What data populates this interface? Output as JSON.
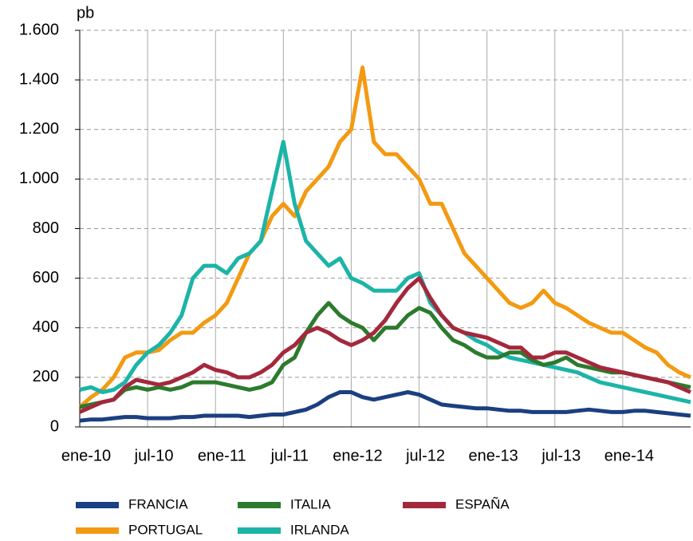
{
  "chart_data": {
    "type": "line",
    "y_label": "pb",
    "categories": [
      "ene-10",
      null,
      null,
      null,
      null,
      null,
      "jul-10",
      null,
      null,
      null,
      null,
      null,
      "ene-11",
      null,
      null,
      null,
      null,
      null,
      "jul-11",
      null,
      null,
      null,
      null,
      null,
      "ene-12",
      null,
      null,
      null,
      null,
      null,
      "jul-12",
      null,
      null,
      null,
      null,
      null,
      "ene-13",
      null,
      null,
      null,
      null,
      null,
      "jul-13",
      null,
      null,
      null,
      null,
      null,
      "ene-14",
      null,
      null,
      null,
      null,
      null,
      null
    ],
    "series": [
      {
        "name": "PORTUGAL",
        "color": "#f39a12",
        "values": [
          80,
          120,
          150,
          200,
          280,
          300,
          300,
          310,
          350,
          380,
          380,
          420,
          450,
          500,
          600,
          700,
          750,
          850,
          900,
          850,
          950,
          1000,
          1050,
          1150,
          1200,
          1450,
          1150,
          1100,
          1100,
          1050,
          1000,
          900,
          900,
          800,
          700,
          650,
          600,
          550,
          500,
          480,
          500,
          550,
          500,
          480,
          450,
          420,
          400,
          380,
          380,
          350,
          320,
          300,
          250,
          220,
          200
        ]
      },
      {
        "name": "IRLANDA",
        "color": "#1db4a8",
        "values": [
          150,
          160,
          140,
          150,
          180,
          250,
          300,
          330,
          380,
          450,
          600,
          650,
          650,
          620,
          680,
          700,
          750,
          950,
          1150,
          900,
          750,
          700,
          650,
          680,
          600,
          580,
          550,
          550,
          550,
          600,
          620,
          500,
          450,
          400,
          380,
          350,
          330,
          300,
          280,
          270,
          260,
          250,
          240,
          230,
          220,
          200,
          180,
          170,
          160,
          150,
          140,
          130,
          120,
          110,
          100
        ]
      },
      {
        "name": "ITALIA",
        "color": "#2d7a2f",
        "values": [
          80,
          90,
          100,
          110,
          150,
          160,
          150,
          160,
          150,
          160,
          180,
          180,
          180,
          170,
          160,
          150,
          160,
          180,
          250,
          280,
          380,
          450,
          500,
          450,
          420,
          400,
          350,
          400,
          400,
          450,
          480,
          460,
          400,
          350,
          330,
          300,
          280,
          280,
          300,
          300,
          270,
          250,
          260,
          280,
          250,
          240,
          230,
          220,
          220,
          210,
          200,
          190,
          180,
          170,
          160
        ]
      },
      {
        "name": "ESPAÑA",
        "color": "#a4283c",
        "values": [
          60,
          80,
          100,
          110,
          160,
          190,
          180,
          170,
          180,
          200,
          220,
          250,
          230,
          220,
          200,
          200,
          220,
          250,
          300,
          330,
          380,
          400,
          380,
          350,
          330,
          350,
          380,
          430,
          500,
          560,
          600,
          520,
          450,
          400,
          380,
          370,
          360,
          340,
          320,
          320,
          280,
          280,
          300,
          300,
          280,
          260,
          240,
          230,
          220,
          210,
          200,
          190,
          180,
          160,
          140
        ]
      },
      {
        "name": "FRANCIA",
        "color": "#1b3f80",
        "values": [
          25,
          30,
          30,
          35,
          40,
          40,
          35,
          35,
          35,
          40,
          40,
          45,
          45,
          45,
          45,
          40,
          45,
          50,
          50,
          60,
          70,
          90,
          120,
          140,
          140,
          120,
          110,
          120,
          130,
          140,
          130,
          110,
          90,
          85,
          80,
          75,
          75,
          70,
          65,
          65,
          60,
          60,
          60,
          60,
          65,
          70,
          65,
          60,
          60,
          65,
          65,
          60,
          55,
          50,
          45
        ]
      }
    ],
    "legend_order": [
      "FRANCIA",
      "ITALIA",
      "ESPAÑA",
      "PORTUGAL",
      "IRLANDA"
    ],
    "ylim": [
      0,
      1600
    ],
    "yticks": [
      0,
      200,
      400,
      600,
      800,
      {
        "value": 1000,
        "label": "1.000"
      },
      {
        "value": 1200,
        "label": "1.200"
      },
      {
        "value": 1400,
        "label": "1.400"
      },
      {
        "value": 1600,
        "label": "1.600"
      }
    ],
    "grid": true
  }
}
